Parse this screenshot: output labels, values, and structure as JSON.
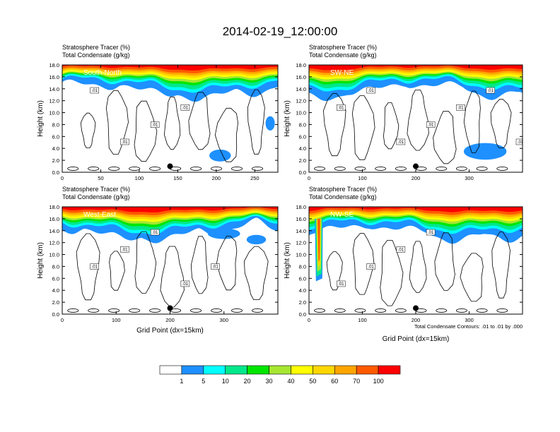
{
  "title": "2014-02-19_12:00:00",
  "colors": {
    "scale": [
      "#ffffff",
      "#1e90ff",
      "#00ffff",
      "#00e88c",
      "#00e600",
      "#a6e632",
      "#ffff00",
      "#ffd700",
      "#ffa500",
      "#ff5a00",
      "#ff0000"
    ],
    "contour": "#000000"
  },
  "chart_data": [
    {
      "type": "contour",
      "panel_label": "South-North",
      "header_line1": "Stratosphere Tracer   (%)",
      "header_line2": "Total Condensate   (g/kg)",
      "ylabel": "Height (km)",
      "xlabel": "",
      "xlim": [
        0,
        280
      ],
      "ylim": [
        0,
        18
      ],
      "x_ticks": [
        "0",
        "50",
        "100",
        "150",
        "200",
        "250"
      ],
      "y_ticks": [
        "0.0",
        "2.0",
        "4.0",
        "6.0",
        "8.0",
        "10.0",
        "12.0",
        "14.0",
        "16.0",
        "18.0"
      ],
      "marker": {
        "x": 140,
        "y": 1.0
      },
      "contour_labels": [
        ".01",
        ".01",
        ".01",
        ".01"
      ]
    },
    {
      "type": "contour",
      "panel_label": "SW-NE",
      "header_line1": "Stratosphere Tracer   (%)",
      "header_line2": "Total Condensate   (g/kg)",
      "ylabel": "Height (km)",
      "xlabel": "",
      "xlim": [
        0,
        400
      ],
      "ylim": [
        0,
        18
      ],
      "x_ticks": [
        "0",
        "100",
        "200",
        "300"
      ],
      "y_ticks": [
        "0.0",
        "2.0",
        "4.0",
        "6.0",
        "8.0",
        "10.0",
        "12.0",
        "14.0",
        "16.0",
        "18.0"
      ],
      "marker": {
        "x": 200,
        "y": 1.0
      },
      "contour_labels": [
        ".01",
        ".01",
        ".01",
        ".01",
        ".01",
        ".01",
        ".01"
      ]
    },
    {
      "type": "contour",
      "panel_label": "West-East",
      "header_line1": "Stratosphere Tracer   (%)",
      "header_line2": "Total Condensate   (g/kg)",
      "ylabel": "Height (km)",
      "xlabel": "Grid Point (dx=15km)",
      "xlim": [
        0,
        400
      ],
      "ylim": [
        0,
        18
      ],
      "x_ticks": [
        "0",
        "100",
        "200",
        "300"
      ],
      "y_ticks": [
        "0.0",
        "2.0",
        "4.0",
        "6.0",
        "8.0",
        "10.0",
        "12.0",
        "14.0",
        "16.0",
        "18.0"
      ],
      "marker": {
        "x": 200,
        "y": 1.0
      },
      "contour_labels": [
        ".01",
        ".01",
        ".01",
        ".01",
        ".01"
      ]
    },
    {
      "type": "contour",
      "panel_label": "NW-SE",
      "header_line1": "Stratosphere Tracer   (%)",
      "header_line2": "Total Condensate   (g/kg)",
      "ylabel": "Height (km)",
      "xlabel": "Grid Point (dx=15km)",
      "footnote": "Total Condensate Contours: .01 to .01 by .000",
      "xlim": [
        0,
        400
      ],
      "ylim": [
        0,
        18
      ],
      "x_ticks": [
        "0",
        "100",
        "200",
        "300"
      ],
      "y_ticks": [
        "0.0",
        "2.0",
        "4.0",
        "6.0",
        "8.0",
        "10.0",
        "12.0",
        "14.0",
        "16.0",
        "18.0"
      ],
      "marker": {
        "x": 200,
        "y": 1.0
      },
      "contour_labels": [
        ".01",
        ".01",
        ".01",
        ".01"
      ]
    }
  ],
  "colorbar": {
    "labels": [
      "1",
      "5",
      "10",
      "20",
      "30",
      "40",
      "50",
      "60",
      "70",
      "100"
    ]
  }
}
